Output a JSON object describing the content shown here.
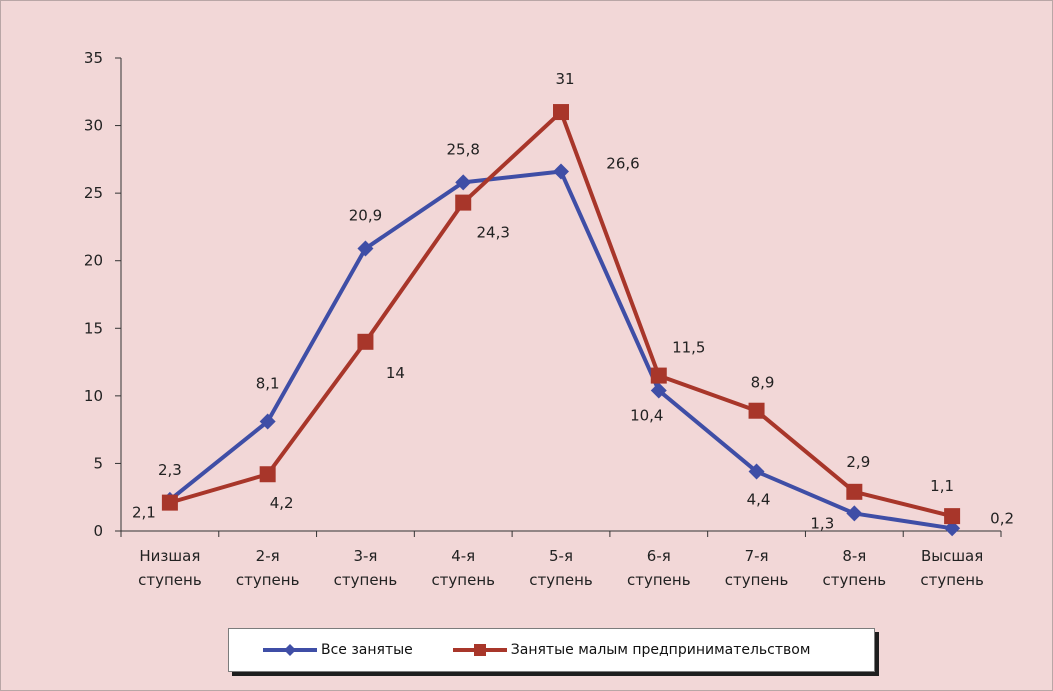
{
  "colors": {
    "series1": "#3f4ea6",
    "series2": "#a8362a",
    "background": "#f2d7d7"
  },
  "chart_data": {
    "type": "line",
    "categories": [
      [
        "Низшая",
        "ступень"
      ],
      [
        "2-я",
        "ступень"
      ],
      [
        "3-я",
        "ступень"
      ],
      [
        "4-я",
        "ступень"
      ],
      [
        "5-я",
        "ступень"
      ],
      [
        "6-я",
        "ступень"
      ],
      [
        "7-я",
        "ступень"
      ],
      [
        "8-я",
        "ступень"
      ],
      [
        "Высшая",
        "ступень"
      ]
    ],
    "series": [
      {
        "name": "Все занятые",
        "marker": "diamond",
        "values": [
          2.3,
          8.1,
          20.9,
          25.8,
          26.6,
          10.4,
          4.4,
          1.3,
          0.2
        ],
        "labels": [
          "2,3",
          "8,1",
          "20,9",
          "25,8",
          "26,6",
          "10,4",
          "4,4",
          "1,3",
          "0,2"
        ]
      },
      {
        "name": "Занятые малым предпринимательством",
        "marker": "square",
        "values": [
          2.1,
          4.2,
          14,
          24.3,
          31,
          11.5,
          8.9,
          2.9,
          1.1
        ],
        "labels": [
          "2,1",
          "4,2",
          "14",
          "24,3",
          "31",
          "11,5",
          "8,9",
          "2,9",
          "1,1"
        ]
      }
    ],
    "ylim": [
      0,
      35
    ],
    "yticks": [
      0,
      5,
      10,
      15,
      20,
      25,
      30,
      35
    ],
    "grid": false,
    "legend": "bottom"
  }
}
